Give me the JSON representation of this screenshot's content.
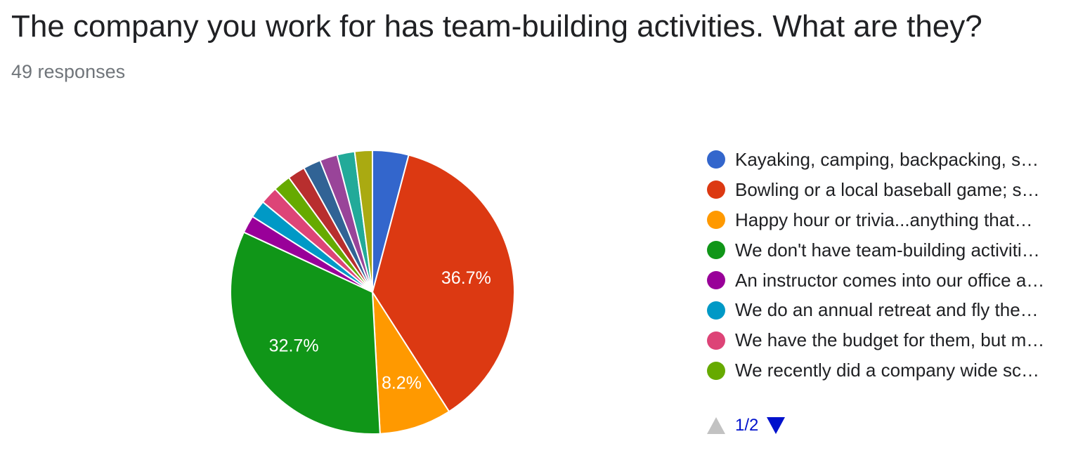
{
  "header": {
    "title": "The company you work for has team-building activities. What are they?",
    "responses": "49 responses"
  },
  "chart_data": {
    "type": "pie",
    "start_angle_deg": 90,
    "direction": "clockwise",
    "slices": [
      {
        "label": "Kayaking, camping, backpacking, s…",
        "percent": 4.1,
        "color": "#3366cc",
        "data_label": ""
      },
      {
        "label": "Bowling or a local baseball game; s…",
        "percent": 36.7,
        "color": "#dc3912",
        "data_label": "36.7%"
      },
      {
        "label": "Happy hour or trivia...anything that…",
        "percent": 8.2,
        "color": "#ff9900",
        "data_label": "8.2%"
      },
      {
        "label": "We don't have team-building activiti…",
        "percent": 32.7,
        "color": "#109618",
        "data_label": "32.7%"
      },
      {
        "label": "An instructor comes into our office a…",
        "percent": 2.0,
        "color": "#990099",
        "data_label": ""
      },
      {
        "label": "We do an annual retreat and fly the…",
        "percent": 2.0,
        "color": "#0099c6",
        "data_label": ""
      },
      {
        "label": "We have the budget for them, but m…",
        "percent": 2.0,
        "color": "#dd4477",
        "data_label": ""
      },
      {
        "label": "We recently did a company wide sc…",
        "percent": 2.0,
        "color": "#66aa00",
        "data_label": ""
      },
      {
        "label": "",
        "percent": 2.0,
        "color": "#b82e2e",
        "data_label": ""
      },
      {
        "label": "",
        "percent": 2.0,
        "color": "#316395",
        "data_label": ""
      },
      {
        "label": "",
        "percent": 2.0,
        "color": "#994499",
        "data_label": ""
      },
      {
        "label": "",
        "percent": 2.0,
        "color": "#22aa99",
        "data_label": ""
      },
      {
        "label": "",
        "percent": 2.0,
        "color": "#aaaa11",
        "data_label": ""
      }
    ],
    "legend_position": "right",
    "legend_visible_count": 8
  },
  "pager": {
    "text": "1/2",
    "up_icon": "triangle-up-icon",
    "down_icon": "triangle-down-icon"
  }
}
